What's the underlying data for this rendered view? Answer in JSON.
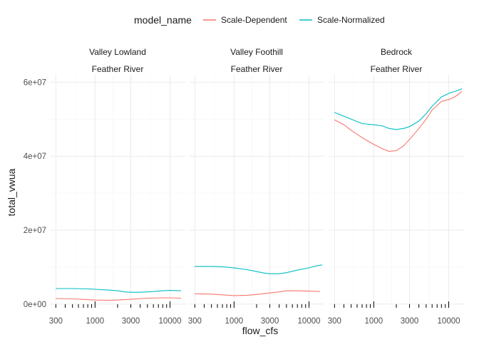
{
  "chart_data": {
    "type": "line",
    "xlabel": "flow_cfs",
    "ylabel": "total_vwua",
    "x_scale": "log10",
    "xlim": [
      250,
      16000
    ],
    "ylim": [
      -1000000,
      62000000
    ],
    "x_ticks": [
      300,
      1000,
      3000,
      10000
    ],
    "x_tick_labels": [
      "300",
      "1000",
      "3000",
      "10000"
    ],
    "y_ticks": [
      0,
      20000000,
      40000000,
      60000000
    ],
    "y_tick_labels": [
      "0e+00",
      "2e+07",
      "4e+07",
      "6e+07"
    ],
    "grid": true,
    "legend": {
      "title": "model_name",
      "position": "top",
      "entries": [
        {
          "label": "Scale-Dependent",
          "color": "#F8766D"
        },
        {
          "label": "Scale-Normalized",
          "color": "#00BFC4"
        }
      ]
    },
    "rug_x": [
      300,
      400,
      500,
      600,
      700,
      800,
      900,
      1000,
      2000,
      3000,
      4000,
      5000,
      6000,
      7000,
      8000,
      9000,
      10000
    ],
    "panels": [
      {
        "strip_top": "Valley Lowland",
        "strip_bottom": "Feather River",
        "series": [
          {
            "name": "Scale-Dependent",
            "color": "#F8766D",
            "x": [
              300,
              500,
              800,
              1000,
              1500,
              2000,
              3000,
              5000,
              8000,
              10000,
              14000
            ],
            "y": [
              1500000,
              1400000,
              1200000,
              1100000,
              1050000,
              1100000,
              1300000,
              1600000,
              1700000,
              1700000,
              1600000
            ]
          },
          {
            "name": "Scale-Normalized",
            "color": "#00BFC4",
            "x": [
              300,
              500,
              800,
              1000,
              1500,
              2000,
              2500,
              3000,
              4000,
              6000,
              8000,
              10000,
              14000
            ],
            "y": [
              4200000,
              4200000,
              4100000,
              4000000,
              3800000,
              3600000,
              3300000,
              3200000,
              3200000,
              3400000,
              3600000,
              3700000,
              3600000
            ]
          }
        ]
      },
      {
        "strip_top": "Valley Foothill",
        "strip_bottom": "Feather River",
        "series": [
          {
            "name": "Scale-Dependent",
            "color": "#F8766D",
            "x": [
              300,
              500,
              700,
              1000,
              1500,
              2000,
              3000,
              4000,
              5000,
              7000,
              10000,
              14000
            ],
            "y": [
              2800000,
              2700000,
              2500000,
              2300000,
              2400000,
              2600000,
              3000000,
              3300000,
              3600000,
              3600000,
              3500000,
              3400000
            ]
          },
          {
            "name": "Scale-Normalized",
            "color": "#00BFC4",
            "x": [
              300,
              500,
              700,
              1000,
              1500,
              2000,
              2500,
              3000,
              4000,
              5000,
              7000,
              10000,
              13000,
              15000
            ],
            "y": [
              10200000,
              10200000,
              10100000,
              9800000,
              9300000,
              8800000,
              8400000,
              8200000,
              8200000,
              8500000,
              9200000,
              9800000,
              10400000,
              10600000
            ]
          }
        ]
      },
      {
        "strip_top": "Bedrock",
        "strip_bottom": "Feather River",
        "series": [
          {
            "name": "Scale-Dependent",
            "color": "#F8766D",
            "x": [
              300,
              400,
              500,
              700,
              1000,
              1300,
              1600,
              2000,
              2500,
              3000,
              4000,
              5000,
              6000,
              8000,
              10000,
              12000,
              15000
            ],
            "y": [
              49800000,
              48500000,
              47000000,
              45000000,
              43200000,
              42000000,
              41300000,
              41500000,
              42800000,
              44500000,
              47500000,
              50000000,
              52500000,
              54800000,
              55300000,
              56000000,
              57500000
            ]
          },
          {
            "name": "Scale-Normalized",
            "color": "#00BFC4",
            "x": [
              300,
              400,
              500,
              700,
              1000,
              1300,
              1600,
              2000,
              2500,
              3000,
              4000,
              5000,
              6000,
              8000,
              10000,
              12000,
              15000
            ],
            "y": [
              51800000,
              50800000,
              50000000,
              48800000,
              48500000,
              48200000,
              47500000,
              47200000,
              47500000,
              48000000,
              49500000,
              51500000,
              53500000,
              56000000,
              57000000,
              57500000,
              58200000
            ]
          }
        ]
      }
    ]
  }
}
